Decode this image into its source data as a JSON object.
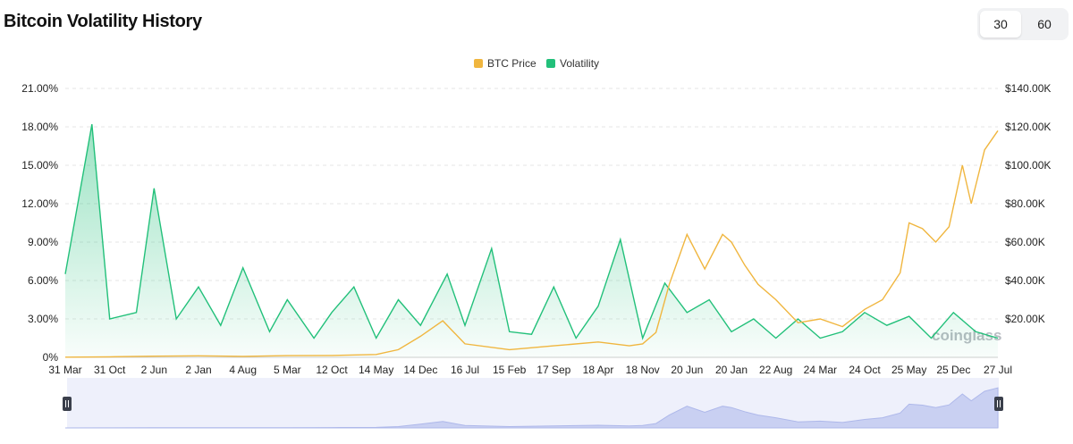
{
  "header": {
    "title": "Bitcoin Volatility History"
  },
  "period_toggle": {
    "options": [
      "30",
      "60"
    ],
    "selected": "30"
  },
  "watermark": "coinglass",
  "colors": {
    "btc_price": "#f0b63f",
    "volatility": "#22c07a",
    "navigator": "#c9d0f2"
  },
  "chart_data": {
    "type": "line",
    "legend": [
      "BTC Price",
      "Volatility"
    ],
    "legend_position": "top-center",
    "grid": true,
    "x_tick_labels": [
      "31 Mar",
      "31 Oct",
      "2 Jun",
      "2 Jan",
      "4 Aug",
      "5 Mar",
      "12 Oct",
      "14 May",
      "14 Dec",
      "16 Jul",
      "15 Feb",
      "17 Sep",
      "18 Apr",
      "18 Nov",
      "20 Jun",
      "20 Jan",
      "22 Aug",
      "24 Mar",
      "24 Oct",
      "25 May",
      "25 Dec",
      "27 Jul"
    ],
    "y_left": {
      "ticks": [
        "0%",
        "3.00%",
        "6.00%",
        "9.00%",
        "12.00%",
        "15.00%",
        "18.00%",
        "21.00%"
      ],
      "range": [
        0,
        21
      ]
    },
    "y_right": {
      "ticks": [
        "$20.00K",
        "$40.00K",
        "$60.00K",
        "$80.00K",
        "$100.00K",
        "$120.00K",
        "$140.00K"
      ],
      "range": [
        0,
        140000
      ]
    },
    "series": [
      {
        "name": "Volatility",
        "axis": "left",
        "x": [
          0,
          0.6,
          1,
          1.6,
          2,
          2.5,
          3,
          3.5,
          4,
          4.6,
          5,
          5.6,
          6,
          6.5,
          7,
          7.5,
          8,
          8.6,
          9,
          9.6,
          10,
          10.5,
          11,
          11.5,
          12,
          12.5,
          13,
          13.5,
          14,
          14.5,
          15,
          15.5,
          16,
          16.5,
          17,
          17.5,
          18,
          18.5,
          19,
          19.5,
          20,
          20.5,
          21
        ],
        "y": [
          6.5,
          18.2,
          3.0,
          3.5,
          13.2,
          3.0,
          5.5,
          2.5,
          7.0,
          2.0,
          4.5,
          1.5,
          3.5,
          5.5,
          1.5,
          4.5,
          2.5,
          6.5,
          2.5,
          8.5,
          2.0,
          1.8,
          5.5,
          1.5,
          4.0,
          9.2,
          1.5,
          5.8,
          3.5,
          4.5,
          2.0,
          3.0,
          1.5,
          3.0,
          1.5,
          2.0,
          3.5,
          2.5,
          3.2,
          1.5,
          3.5,
          2.0,
          1.5
        ]
      },
      {
        "name": "BTC Price",
        "axis": "right",
        "x": [
          0,
          1,
          2,
          3,
          4,
          5,
          6,
          7,
          7.5,
          8,
          8.5,
          9,
          10,
          11,
          12,
          12.7,
          13,
          13.3,
          13.6,
          14,
          14.4,
          14.8,
          15,
          15.3,
          15.6,
          16,
          16.5,
          17,
          17.5,
          18,
          18.4,
          18.8,
          19,
          19.3,
          19.6,
          19.9,
          20.2,
          20.4,
          20.7,
          21
        ],
        "y": [
          100,
          300,
          600,
          800,
          500,
          900,
          1000,
          1500,
          4000,
          11000,
          19000,
          7000,
          4000,
          6000,
          8000,
          6000,
          7000,
          13000,
          38000,
          64000,
          46000,
          64000,
          60000,
          48000,
          38000,
          30000,
          18000,
          20000,
          16000,
          25000,
          30000,
          44000,
          70000,
          67000,
          60000,
          68000,
          100000,
          80000,
          108000,
          118000
        ]
      }
    ]
  }
}
